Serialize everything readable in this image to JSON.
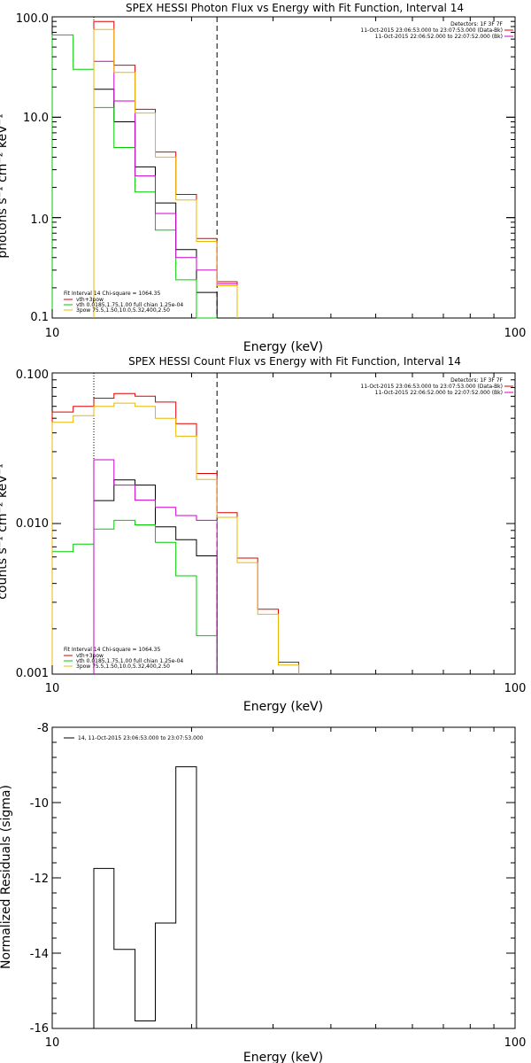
{
  "colors": {
    "black": "#000000",
    "red": "#e00000",
    "green": "#00cc00",
    "magenta": "#cc00cc",
    "orange": "#e8b800"
  },
  "chart_data": [
    {
      "type": "line",
      "title": "SPEX HESSI Photon Flux vs Energy with Fit Function, Interval 14",
      "xlabel": "Energy (keV)",
      "ylabel": "photons s⁻¹ cm⁻² keV⁻¹",
      "xscale": "log",
      "yscale": "log",
      "xlim": [
        10,
        100
      ],
      "ylim": [
        0.1,
        100
      ],
      "x_ticks": [
        "10",
        "100"
      ],
      "y_ticks": [
        "0.1",
        "1.0",
        "10.0",
        "100.0"
      ],
      "edges": [
        10,
        11.1,
        12.3,
        13.6,
        15.1,
        16.7,
        18.5,
        20.5,
        22.7,
        25.1
      ],
      "vlines": {
        "dotted": 12.3,
        "dashed": 22.7
      },
      "legend_top": {
        "detectors": "Detectors: 1F 3F 7F",
        "data": "11-Oct-2015 23:06:53.000 to 23:07:53.000 (Data-Bk)",
        "bk": "11-Oct-2015 22:06:52.000 to 22:07:52.000 (Bk)"
      },
      "legend_fit": {
        "header": "Fit Interval 14   Chi-square = 1064.35",
        "items": [
          "vth+3pow",
          "vth 0.0185,1.75,1.00  full chian 1.25e-04",
          "3pow 75.5,1.50,10.0,5.32,400,2.50"
        ]
      },
      "series": [
        {
          "color": "black",
          "values": [
            null,
            null,
            19,
            9,
            3.2,
            1.4,
            0.48,
            0.18,
            null
          ]
        },
        {
          "color": "red",
          "values": [
            null,
            null,
            90,
            33,
            12,
            4.5,
            1.7,
            0.62,
            0.23
          ]
        },
        {
          "color": "green",
          "values": [
            66,
            30,
            12.5,
            5,
            1.8,
            0.75,
            0.24,
            0.08,
            null
          ]
        },
        {
          "color": "magenta",
          "values": [
            null,
            null,
            36,
            14.5,
            2.6,
            1.1,
            0.4,
            0.3,
            0.22
          ]
        },
        {
          "color": "orange",
          "values": [
            null,
            null,
            75,
            28,
            11,
            4,
            1.5,
            0.58,
            0.21
          ]
        }
      ]
    },
    {
      "type": "line",
      "title": "SPEX HESSI Count Flux vs Energy with Fit Function, Interval 14",
      "xlabel": "Energy (keV)",
      "ylabel": "counts s⁻¹ cm⁻² keV⁻¹",
      "xscale": "log",
      "yscale": "log",
      "xlim": [
        10,
        100
      ],
      "ylim": [
        0.001,
        0.1
      ],
      "x_ticks": [
        "10",
        "100"
      ],
      "y_ticks": [
        "0.001",
        "0.010",
        "0.100"
      ],
      "edges": [
        10,
        11.1,
        12.3,
        13.6,
        15.1,
        16.7,
        18.5,
        20.5,
        22.7,
        25.1,
        27.8,
        30.8,
        34.1
      ],
      "vlines": {
        "dotted": 12.3,
        "dashed": 22.7
      },
      "legend_top": {
        "detectors": "Detectors: 1F 3F 7F",
        "data": "11-Oct-2015 23:06:53.000 to 23:07:53.000 (Data-Bk)",
        "bk": "11-Oct-2015 22:06:52.000 to 22:07:52.000 (Bk)"
      },
      "legend_fit": {
        "header": "Fit Interval 14   Chi-square = 1064.35",
        "items": [
          "vth+3pow",
          "vth 0.0185,1.75,1.00  full chian 1.25e-04",
          "3pow 75.5,1.50,10.0,5.32,400,2.50"
        ]
      },
      "series": [
        {
          "color": "black",
          "values": [
            null,
            null,
            0.0142,
            0.0195,
            0.018,
            0.0095,
            0.0078,
            0.0061,
            null,
            null,
            null,
            null
          ]
        },
        {
          "color": "red",
          "values": [
            0.055,
            0.06,
            0.068,
            0.073,
            0.07,
            0.064,
            0.046,
            0.0215,
            0.0118,
            0.0059,
            0.0027,
            0.0012
          ]
        },
        {
          "color": "green",
          "values": [
            0.0065,
            0.0073,
            0.0092,
            0.0105,
            0.0098,
            0.0075,
            0.0045,
            0.0018,
            null,
            null,
            null,
            null
          ]
        },
        {
          "color": "magenta",
          "values": [
            null,
            null,
            0.0265,
            0.018,
            0.0143,
            0.0128,
            0.0113,
            0.0105,
            null,
            null,
            null,
            null
          ]
        },
        {
          "color": "orange",
          "values": [
            0.047,
            0.052,
            0.06,
            0.063,
            0.06,
            0.05,
            0.038,
            0.0196,
            0.011,
            0.0055,
            0.0025,
            0.00115
          ]
        }
      ]
    },
    {
      "type": "line",
      "title": "",
      "xlabel": "Energy (keV)",
      "ylabel": "Normalized Residuals (sigma)",
      "xscale": "log",
      "yscale": "linear",
      "xlim": [
        10,
        100
      ],
      "ylim": [
        -16,
        -8
      ],
      "x_ticks": [
        "10",
        "100"
      ],
      "y_ticks": [
        "-16",
        "-14",
        "-12",
        "-10",
        "-8"
      ],
      "edges": [
        12.3,
        13.6,
        15.1,
        16.7,
        18.5,
        20.5
      ],
      "legend": "14, 11-Oct-2015 23:06:53.000 to 23:07:53.000",
      "series": [
        {
          "color": "black",
          "values": [
            -11.75,
            -13.9,
            -15.8,
            -13.2,
            -9.05
          ]
        }
      ]
    }
  ]
}
